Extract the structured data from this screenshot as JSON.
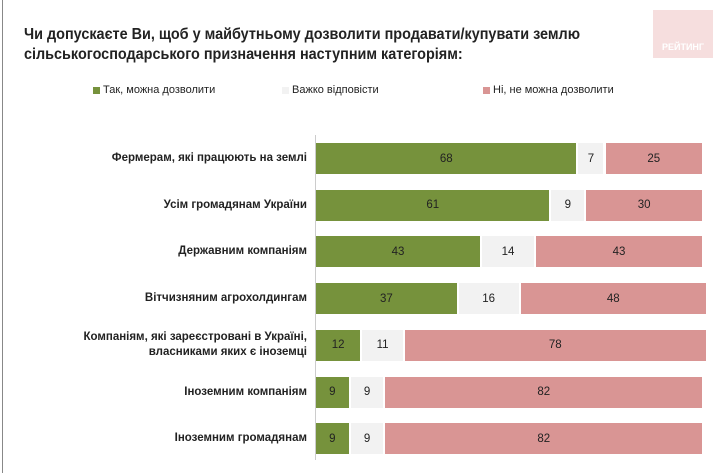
{
  "title": "Чи допускаєте Ви, щоб у майбутньому дозволити продавати/купувати землю сільськогосподарського призначення наступним категоріям:",
  "logo_text": "РЕЙТИНГ",
  "chart_data": {
    "type": "bar",
    "stacked": true,
    "orientation": "horizontal",
    "xlim": [
      0,
      100
    ],
    "legend_position": "top",
    "categories": [
      "Фермерам, які працюють на землі",
      "Усім громадянам України",
      "Державним компаніям",
      "Вітчизняним агрохолдингам",
      "Компаніям, які зареєстровані в Україні, власниками яких є іноземці",
      "Іноземним компаніям",
      "Іноземним громадянам"
    ],
    "series": [
      {
        "name": "Так, можна дозволити",
        "color": "#76923c",
        "values": [
          68,
          61,
          43,
          37,
          12,
          9,
          9
        ]
      },
      {
        "name": "Важко відповісти",
        "color": "#f2f2f2",
        "values": [
          7,
          9,
          14,
          16,
          11,
          9,
          9
        ]
      },
      {
        "name": "Ні, не можна дозволити",
        "color": "#d99594",
        "values": [
          25,
          30,
          43,
          48,
          78,
          82,
          82
        ]
      }
    ]
  }
}
